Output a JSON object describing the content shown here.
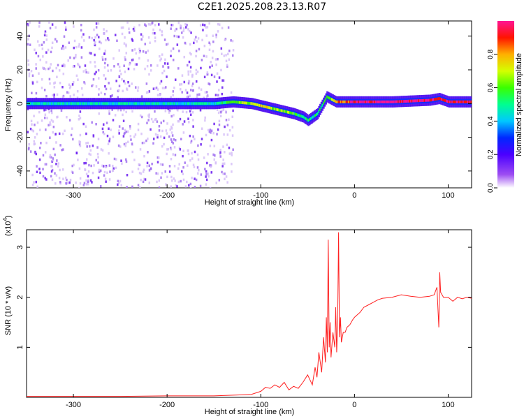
{
  "title": "C2E1.2025.208.23.13.R07",
  "chart_data": [
    {
      "type": "heatmap",
      "xlabel": "Height of straight line (km)",
      "ylabel": "Frequency (Hz)",
      "xlim": [
        -350,
        125
      ],
      "ylim": [
        -50,
        49
      ],
      "xticks": [
        -300,
        -200,
        -100,
        0,
        100
      ],
      "yticks": [
        -40,
        -20,
        0,
        20,
        40
      ],
      "colorbar": {
        "label": "Normalized spectral amplitude",
        "range": [
          0,
          1
        ],
        "ticks": [
          "0.0",
          "0.2",
          "0.4",
          "0.6",
          "0.8"
        ],
        "colors": [
          "#ffffff",
          "#9d4df2",
          "#4b00ff",
          "#0028ff",
          "#00c8ff",
          "#00ff90",
          "#3aff00",
          "#d4ff00",
          "#ffb000",
          "#ff1400",
          "#ff1493"
        ]
      },
      "ridge": [
        {
          "x": -350,
          "freq": 0,
          "amp": 0.45
        },
        {
          "x": -300,
          "freq": 0,
          "amp": 0.48
        },
        {
          "x": -250,
          "freq": 0,
          "amp": 0.45
        },
        {
          "x": -200,
          "freq": 0,
          "amp": 0.47
        },
        {
          "x": -150,
          "freq": 0,
          "amp": 0.45
        },
        {
          "x": -130,
          "freq": 1,
          "amp": 0.6
        },
        {
          "x": -110,
          "freq": 0,
          "amp": 0.72
        },
        {
          "x": -95,
          "freq": -2,
          "amp": 0.72
        },
        {
          "x": -80,
          "freq": -4,
          "amp": 0.65
        },
        {
          "x": -65,
          "freq": -6,
          "amp": 0.6
        },
        {
          "x": -55,
          "freq": -8,
          "amp": 0.55
        },
        {
          "x": -50,
          "freq": -10,
          "amp": 0.5
        },
        {
          "x": -40,
          "freq": -6,
          "amp": 0.5
        },
        {
          "x": -30,
          "freq": 4,
          "amp": 0.55
        },
        {
          "x": -20,
          "freq": 1,
          "amp": 0.8
        },
        {
          "x": 0,
          "freq": 1,
          "amp": 0.95
        },
        {
          "x": 40,
          "freq": 1,
          "amp": 1.0
        },
        {
          "x": 80,
          "freq": 2,
          "amp": 0.95
        },
        {
          "x": 90,
          "freq": 3,
          "amp": 0.9
        },
        {
          "x": 100,
          "freq": 1,
          "amp": 0.95
        },
        {
          "x": 125,
          "freq": 1,
          "amp": 0.95
        }
      ]
    },
    {
      "type": "line",
      "xlabel": "Height of straight line (km)",
      "ylabel": "SNR (10 * v/v)",
      "y_multiplier": "(x10",
      "y_multiplier_exp": "4",
      "y_multiplier_close": ")",
      "xlim": [
        -350,
        125
      ],
      "ylim": [
        0,
        3.35
      ],
      "xticks": [
        -300,
        -200,
        -100,
        0,
        100
      ],
      "yticks": [
        1,
        2,
        3
      ],
      "series": [
        {
          "color": "#ff2020",
          "x": [
            -350,
            -300,
            -250,
            -200,
            -150,
            -120,
            -110,
            -100,
            -95,
            -90,
            -85,
            -80,
            -75,
            -70,
            -65,
            -60,
            -55,
            -50,
            -45,
            -42,
            -40,
            -38,
            -35,
            -33,
            -31,
            -30,
            -29,
            -28,
            -27,
            -26,
            -25,
            -23,
            -21,
            -20,
            -19,
            -18,
            -17,
            -16,
            -15,
            -14,
            -12,
            -10,
            -8,
            -5,
            -2,
            0,
            3,
            6,
            10,
            15,
            20,
            25,
            30,
            40,
            50,
            60,
            70,
            80,
            85,
            88,
            90,
            91,
            92,
            95,
            100,
            105,
            110,
            115,
            120,
            125
          ],
          "y": [
            0.02,
            0.02,
            0.02,
            0.03,
            0.03,
            0.05,
            0.06,
            0.12,
            0.2,
            0.18,
            0.25,
            0.2,
            0.3,
            0.15,
            0.22,
            0.18,
            0.3,
            0.45,
            0.25,
            0.6,
            0.4,
            0.9,
            0.5,
            1.2,
            0.7,
            1.6,
            0.9,
            3.15,
            1.0,
            1.5,
            0.8,
            1.3,
            1.0,
            1.8,
            0.9,
            1.4,
            3.3,
            1.2,
            1.6,
            1.1,
            1.3,
            1.3,
            1.4,
            1.45,
            1.55,
            1.6,
            1.65,
            1.7,
            1.8,
            1.85,
            1.9,
            1.95,
            1.98,
            2.0,
            2.05,
            2.02,
            2.0,
            2.02,
            2.05,
            2.2,
            1.4,
            2.5,
            2.1,
            2.0,
            2.0,
            1.92,
            2.0,
            1.97,
            2.0,
            1.98
          ]
        }
      ]
    }
  ]
}
